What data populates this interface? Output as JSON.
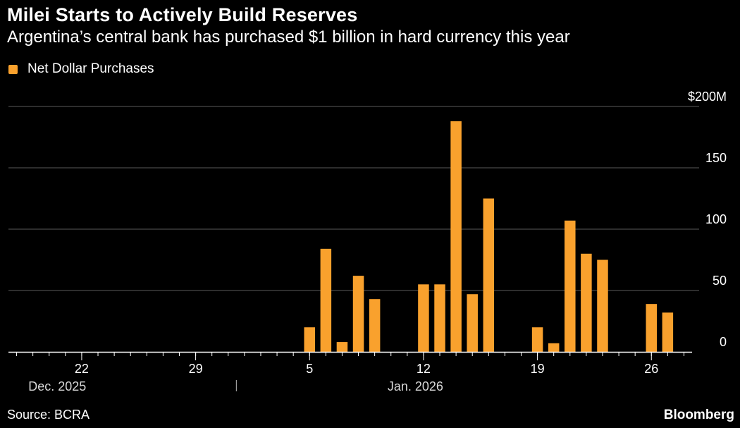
{
  "header": {
    "title": "Milei Starts to Actively Build Reserves",
    "subtitle": "Argentina’s central bank has purchased $1 billion in hard currency this year"
  },
  "footer": {
    "source": "Source: BCRA",
    "brand": "Bloomberg"
  },
  "colors": {
    "bar": "#f9a12d",
    "background": "#000000",
    "grid": "#5a5a5a",
    "text": "#ffffff"
  },
  "chart_data": {
    "type": "bar",
    "title": "Milei Starts to Actively Build Reserves",
    "subtitle": "Argentina’s central bank has purchased $1 billion in hard currency this year",
    "legend": [
      "Net Dollar Purchases"
    ],
    "legend_position": "top-left",
    "ylabel": "",
    "ylim": [
      0,
      200
    ],
    "y_ticks": [
      {
        "value": 200,
        "label": "$200M"
      },
      {
        "value": 150,
        "label": "150"
      },
      {
        "value": 100,
        "label": "100"
      },
      {
        "value": 50,
        "label": "50"
      },
      {
        "value": 0,
        "label": "0"
      }
    ],
    "y_axis_side": "right",
    "grid": true,
    "x_start_day": 15,
    "x_end_day": 28,
    "x_range_note": "days relative to Jan 1 2026 (Dec 18 2025 = -14)",
    "x_tick_labels": [
      {
        "day": -10,
        "label": "22"
      },
      {
        "day": -3,
        "label": "29"
      },
      {
        "day": 4,
        "label": "5"
      },
      {
        "day": 11,
        "label": "12"
      },
      {
        "day": 18,
        "label": "19"
      },
      {
        "day": 25,
        "label": "26"
      }
    ],
    "month_labels": [
      {
        "day": -11.5,
        "label": "Dec. 2025"
      },
      {
        "day": 10.5,
        "label": "Jan. 2026"
      }
    ],
    "month_divider_day": 0,
    "x_domain_days": [
      -14.5,
      27.5
    ],
    "series": [
      {
        "name": "Net Dollar Purchases",
        "points": [
          {
            "date": "2026-01-05",
            "day": 4,
            "value": 20
          },
          {
            "date": "2026-01-06",
            "day": 5,
            "value": 84
          },
          {
            "date": "2026-01-07",
            "day": 6,
            "value": 8
          },
          {
            "date": "2026-01-08",
            "day": 7,
            "value": 62
          },
          {
            "date": "2026-01-09",
            "day": 8,
            "value": 43
          },
          {
            "date": "2026-01-12",
            "day": 11,
            "value": 55
          },
          {
            "date": "2026-01-13",
            "day": 12,
            "value": 55
          },
          {
            "date": "2026-01-14",
            "day": 13,
            "value": 188
          },
          {
            "date": "2026-01-15",
            "day": 14,
            "value": 47
          },
          {
            "date": "2026-01-16",
            "day": 15,
            "value": 125
          },
          {
            "date": "2026-01-19",
            "day": 18,
            "value": 20
          },
          {
            "date": "2026-01-20",
            "day": 19,
            "value": 7
          },
          {
            "date": "2026-01-21",
            "day": 20,
            "value": 107
          },
          {
            "date": "2026-01-22",
            "day": 21,
            "value": 80
          },
          {
            "date": "2026-01-23",
            "day": 22,
            "value": 75
          },
          {
            "date": "2026-01-26",
            "day": 25,
            "value": 39
          },
          {
            "date": "2026-01-27",
            "day": 26,
            "value": 32
          }
        ]
      }
    ]
  }
}
